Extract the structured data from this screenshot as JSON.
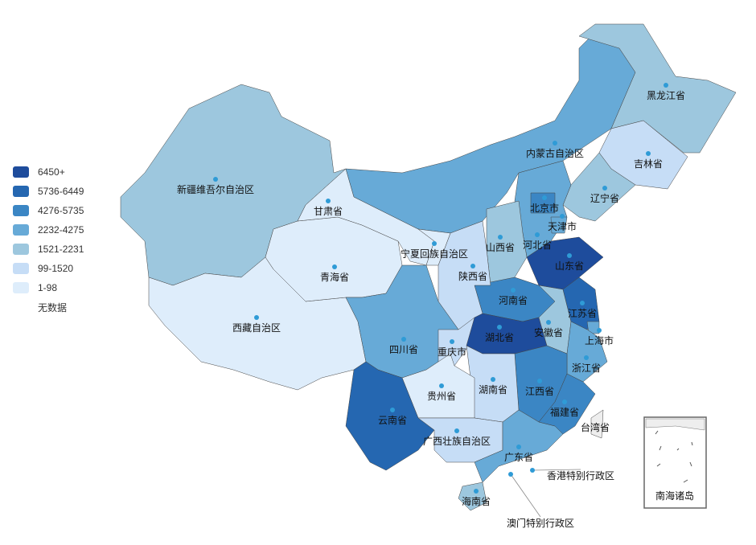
{
  "legend": {
    "items": [
      {
        "label": "6450+",
        "color": "#1e4c9c"
      },
      {
        "label": "5736-6449",
        "color": "#2567b1"
      },
      {
        "label": "4276-5735",
        "color": "#3b86c4"
      },
      {
        "label": "2232-4275",
        "color": "#67aad7"
      },
      {
        "label": "1521-2231",
        "color": "#9dc7de"
      },
      {
        "label": "99-1520",
        "color": "#c6ddf6"
      },
      {
        "label": "1-98",
        "color": "#deedfb"
      },
      {
        "label": "无数据",
        "color": "#ffffff"
      }
    ]
  },
  "no_data_color": "#eeeeee",
  "regions": [
    {
      "name": "新疆维吾尔自治区",
      "range": "1521-2231"
    },
    {
      "name": "西藏自治区",
      "range": "1-98"
    },
    {
      "name": "青海省",
      "range": "1-98"
    },
    {
      "name": "甘肃省",
      "range": "1-98"
    },
    {
      "name": "内蒙古自治区",
      "range": "2232-4275"
    },
    {
      "name": "黑龙江省",
      "range": "1521-2231"
    },
    {
      "name": "吉林省",
      "range": "99-1520"
    },
    {
      "name": "辽宁省",
      "range": "1521-2231"
    },
    {
      "name": "河北省",
      "range": "2232-4275"
    },
    {
      "name": "北京市",
      "range": "4276-5735"
    },
    {
      "name": "天津市",
      "range": "2232-4275"
    },
    {
      "name": "山西省",
      "range": "1521-2231"
    },
    {
      "name": "山东省",
      "range": "6450+"
    },
    {
      "name": "河南省",
      "range": "4276-5735"
    },
    {
      "name": "陕西省",
      "range": "99-1520"
    },
    {
      "name": "宁夏回族自治区",
      "range": "1-98"
    },
    {
      "name": "四川省",
      "range": "2232-4275"
    },
    {
      "name": "重庆市",
      "range": "99-1520"
    },
    {
      "name": "湖北省",
      "range": "6450+"
    },
    {
      "name": "安徽省",
      "range": "1521-2231"
    },
    {
      "name": "江苏省",
      "range": "5736-6449"
    },
    {
      "name": "上海市",
      "range": "2232-4275"
    },
    {
      "name": "浙江省",
      "range": "2232-4275"
    },
    {
      "name": "江西省",
      "range": "4276-5735"
    },
    {
      "name": "湖南省",
      "range": "99-1520"
    },
    {
      "name": "贵州省",
      "range": "1-98"
    },
    {
      "name": "云南省",
      "range": "5736-6449"
    },
    {
      "name": "广西壮族自治区",
      "range": "99-1520"
    },
    {
      "name": "广东省",
      "range": "2232-4275"
    },
    {
      "name": "福建省",
      "range": "4276-5735"
    },
    {
      "name": "海南省",
      "range": "1521-2231"
    },
    {
      "name": "台湾省",
      "range": "无数据"
    },
    {
      "name": "香港特别行政区",
      "range": "2232-4275"
    },
    {
      "name": "澳门特别行政区",
      "range": "2232-4275"
    }
  ],
  "inset_label": "南海诸岛"
}
